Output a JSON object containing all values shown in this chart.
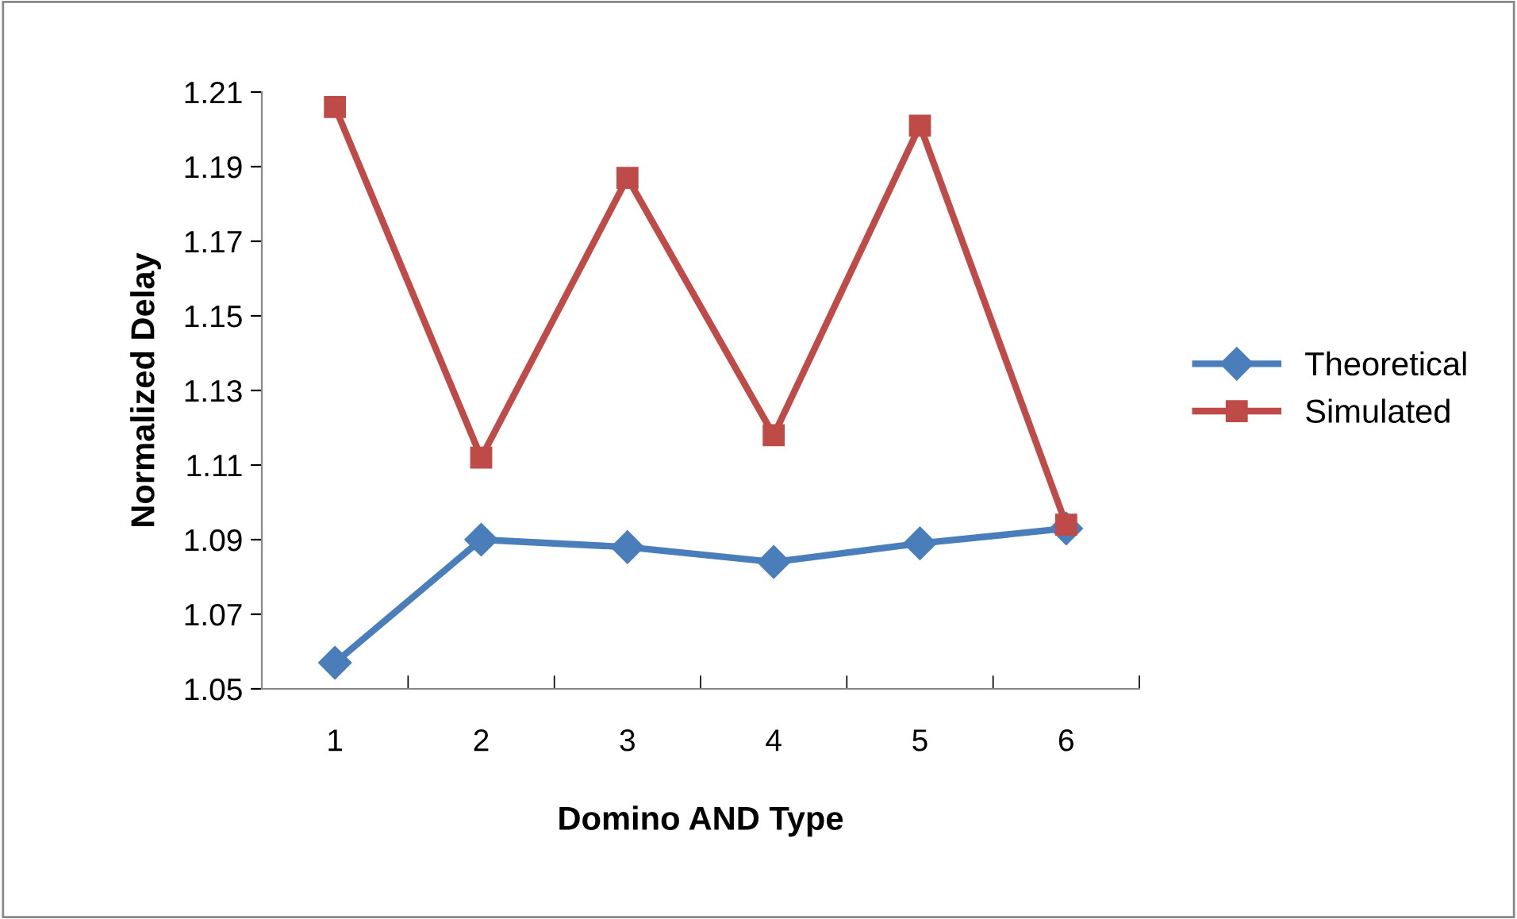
{
  "chart_data": {
    "type": "line",
    "xlabel": "Domino AND Type",
    "ylabel": "Normalized Delay",
    "categories": [
      "1",
      "2",
      "3",
      "4",
      "5",
      "6"
    ],
    "series": [
      {
        "name": "Theoretical",
        "color": "#4a7ebb",
        "marker": "diamond",
        "values": [
          1.057,
          1.09,
          1.088,
          1.084,
          1.089,
          1.093
        ]
      },
      {
        "name": "Simulated",
        "color": "#be4b48",
        "marker": "square",
        "values": [
          1.206,
          1.112,
          1.187,
          1.118,
          1.201,
          1.094
        ]
      }
    ],
    "ylim": [
      1.05,
      1.21
    ],
    "yticks": [
      1.05,
      1.07,
      1.09,
      1.11,
      1.13,
      1.15,
      1.17,
      1.19,
      1.21
    ],
    "grid": false,
    "legend": "right",
    "line_style": "solid"
  }
}
